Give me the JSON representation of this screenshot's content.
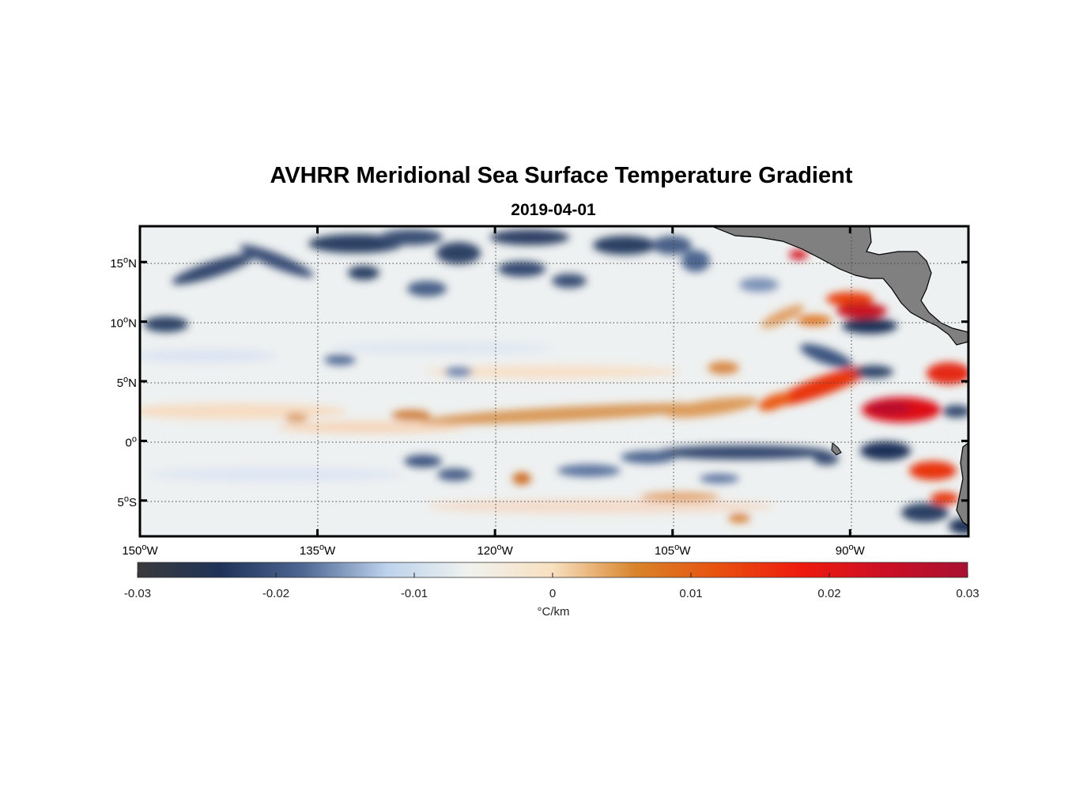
{
  "map": {
    "title": "AVHRR Meridional Sea Surface Temperature Gradient",
    "date": "2019-04-01",
    "lon_range": [
      -150,
      -80
    ],
    "lat_range": [
      -8,
      18
    ],
    "lon_ticks": [
      {
        "value": -150,
        "num": "150",
        "hemi": "W"
      },
      {
        "value": -135,
        "num": "135",
        "hemi": "W"
      },
      {
        "value": -120,
        "num": "120",
        "hemi": "W"
      },
      {
        "value": -105,
        "num": "105",
        "hemi": "W"
      },
      {
        "value": -90,
        "num": "90",
        "hemi": "W"
      }
    ],
    "lat_ticks": [
      {
        "value": 15,
        "num": "15",
        "hemi": "N"
      },
      {
        "value": 10,
        "num": "10",
        "hemi": "N"
      },
      {
        "value": 5,
        "num": "5",
        "hemi": "N"
      },
      {
        "value": 0,
        "num": "0",
        "hemi": ""
      },
      {
        "value": -5,
        "num": "5",
        "hemi": "S"
      }
    ],
    "degree_symbol": "o"
  },
  "colorbar": {
    "min": -0.03,
    "max": 0.03,
    "ticks": [
      "-0.03",
      "-0.02",
      "-0.01",
      "0",
      "0.01",
      "0.02",
      "0.03"
    ],
    "unit": "°C/km",
    "colors": [
      "#3a3a3c",
      "#1f3358",
      "#4f6794",
      "#bcd2ec",
      "#f0f2ee",
      "#f8e0c0",
      "#d8842a",
      "#e85010",
      "#ee1a0e",
      "#cc0f25",
      "#a81132"
    ]
  },
  "colors": {
    "land": "#808080",
    "ocean_background": "#eef1f1",
    "frame": "#000000"
  }
}
